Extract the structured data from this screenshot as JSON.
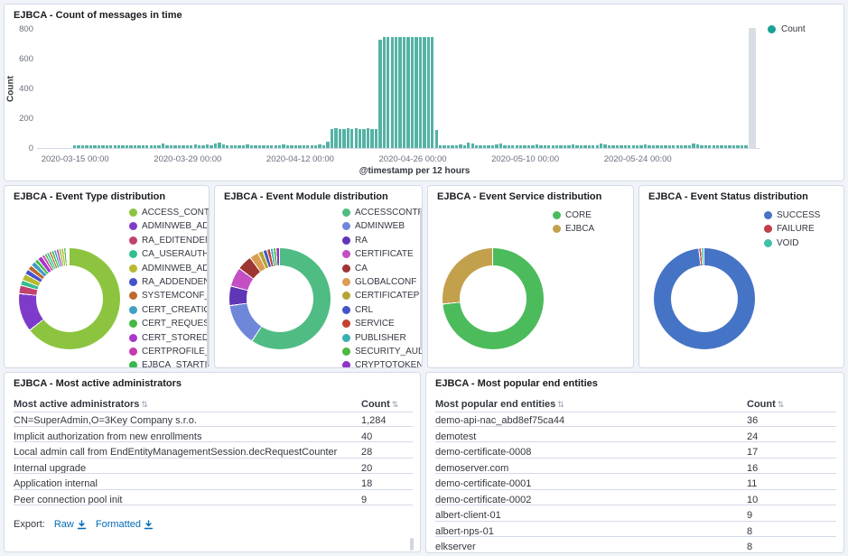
{
  "colors": {
    "bar": "#54b2a5",
    "legend_dot_count": "#1ba195",
    "panel_border": "#d3dae6",
    "link": "#006bb4",
    "text_primary": "#343741",
    "text_secondary": "#69707d",
    "endzone": "#d9dee5"
  },
  "chart_data": [
    {
      "id": "messages",
      "type": "bar",
      "title": "EJBCA - Count of messages in time",
      "xlabel": "@timestamp per 12 hours",
      "ylabel": "Count",
      "legend": [
        {
          "label": "Count",
          "color": "#1ba195"
        }
      ],
      "legend_position": "right",
      "ylim": [
        0,
        800
      ],
      "yticks": [
        0,
        200,
        400,
        600,
        800
      ],
      "xticks": [
        {
          "i": 0,
          "label": "2020-03-15 00:00"
        },
        {
          "i": 28,
          "label": "2020-03-29 00:00"
        },
        {
          "i": 56,
          "label": "2020-04-12 00:00"
        },
        {
          "i": 84,
          "label": "2020-04-26 00:00"
        },
        {
          "i": 112,
          "label": "2020-05-10 00:00"
        },
        {
          "i": 140,
          "label": "2020-05-24 00:00"
        }
      ],
      "values": [
        20,
        19,
        20,
        20,
        18,
        20,
        21,
        20,
        19,
        20,
        20,
        18,
        21,
        20,
        20,
        19,
        20,
        20,
        18,
        20,
        21,
        20,
        30,
        20,
        19,
        20,
        20,
        21,
        19,
        20,
        24,
        20,
        19,
        22,
        20,
        28,
        38,
        22,
        20,
        19,
        20,
        21,
        20,
        25,
        20,
        19,
        20,
        20,
        21,
        20,
        19,
        20,
        26,
        20,
        20,
        19,
        21,
        20,
        20,
        19,
        20,
        22,
        20,
        40,
        128,
        131,
        130,
        129,
        132,
        130,
        131,
        129,
        130,
        131,
        128,
        130,
        727,
        745,
        748,
        744,
        746,
        743,
        747,
        745,
        744,
        746,
        748,
        745,
        743,
        746,
        124,
        20,
        19,
        21,
        20,
        18,
        22,
        20,
        35,
        30,
        20,
        19,
        21,
        20,
        20,
        26,
        30,
        19,
        20,
        21,
        20,
        18,
        20,
        20,
        19,
        22,
        20,
        21,
        19,
        20,
        20,
        21,
        18,
        20,
        22,
        19,
        20,
        20,
        21,
        19,
        20,
        28,
        25,
        20,
        19,
        21,
        20,
        20,
        18,
        21,
        20,
        19,
        22,
        20,
        20,
        19,
        21,
        20,
        18,
        20,
        21,
        20,
        19,
        20,
        28,
        22,
        20,
        19,
        21,
        20,
        18,
        20,
        20,
        19,
        21,
        20,
        20,
        19
      ]
    },
    {
      "id": "event_type",
      "type": "pie",
      "title": "EJBCA - Event Type distribution",
      "has_legend_scrollbar": true,
      "legend": [
        {
          "label": "ACCESS_CONTR...",
          "color": "#8cc43f"
        },
        {
          "label": "ADMINWEB_AD...",
          "color": "#7e3bc9"
        },
        {
          "label": "RA_EDITENDENT...",
          "color": "#c2426e"
        },
        {
          "label": "CA_USERAUTH",
          "color": "#35bd8d"
        },
        {
          "label": "ADMINWEB_AD...",
          "color": "#b7b92f"
        },
        {
          "label": "RA_ADDENDENTI...",
          "color": "#4453c9"
        },
        {
          "label": "SYSTEMCONF_E...",
          "color": "#c0682e"
        },
        {
          "label": "CERT_CREATION",
          "color": "#3f9fc4"
        },
        {
          "label": "CERT_REQUEST",
          "color": "#44b944"
        },
        {
          "label": "CERT_STORED",
          "color": "#a838c9"
        },
        {
          "label": "CERTPROFILE_E...",
          "color": "#c838ae"
        },
        {
          "label": "EJBCA_STARTING",
          "color": "#35b94c"
        }
      ],
      "slices": [
        {
          "label": "ACCESS_CONTR...",
          "color": "#8cc43f",
          "pct": 64.5
        },
        {
          "label": "ADMINWEB_AD...",
          "color": "#7e3bc9",
          "pct": 12.3
        },
        {
          "label": "RA_EDITENDENT...",
          "color": "#c2426e",
          "pct": 2.7
        },
        {
          "label": "CA_USERAUTH",
          "color": "#35bd8d",
          "pct": 1.7
        },
        {
          "label": "ADMINWEB_AD...",
          "color": "#b7b92f",
          "pct": 2.1
        },
        {
          "label": "RA_ADDENDENTI...",
          "color": "#4453c9",
          "pct": 1.7
        },
        {
          "label": "SYSTEMCONF_E...",
          "color": "#c0682e",
          "pct": 1.6
        },
        {
          "label": "CERT_CREATION",
          "color": "#3f9fc4",
          "pct": 1.6
        },
        {
          "label": "CERT_REQUEST",
          "color": "#44b944",
          "pct": 1.2
        },
        {
          "label": "CERT_STORED",
          "color": "#a838c9",
          "pct": 1.6
        },
        {
          "label": "CERTPROFILE_E...",
          "color": "#c838ae",
          "pct": 0.9
        },
        {
          "label": "EJBCA_STARTING",
          "color": "#35b94c",
          "pct": 0.8
        },
        {
          "label": "",
          "color": "#2fbe9a",
          "pct": 0.8
        },
        {
          "label": "",
          "color": "#c0682e",
          "pct": 0.8
        },
        {
          "label": "",
          "color": "#35b94c",
          "pct": 0.8
        },
        {
          "label": "",
          "color": "#3f9fc4",
          "pct": 0.8
        },
        {
          "label": "",
          "color": "#c838ae",
          "pct": 0.8
        },
        {
          "label": "",
          "color": "#8cc43f",
          "pct": 0.8
        },
        {
          "label": "",
          "color": "#b7b92f",
          "pct": 0.8
        },
        {
          "label": "",
          "color": "#44b944",
          "pct": 0.7
        }
      ]
    },
    {
      "id": "event_module",
      "type": "pie",
      "title": "EJBCA - Event Module distribution",
      "has_legend_scrollbar": true,
      "legend": [
        {
          "label": "ACCESSCONTROL",
          "color": "#4fbc83"
        },
        {
          "label": "ADMINWEB",
          "color": "#6f87d8"
        },
        {
          "label": "RA",
          "color": "#5f36b5"
        },
        {
          "label": "CERTIFICATE",
          "color": "#c44fc4"
        },
        {
          "label": "CA",
          "color": "#9e3533"
        },
        {
          "label": "GLOBALCONF",
          "color": "#db9c53"
        },
        {
          "label": "CERTIFICATEPR...",
          "color": "#b5a435"
        },
        {
          "label": "CRL",
          "color": "#4355c5"
        },
        {
          "label": "SERVICE",
          "color": "#c2422f"
        },
        {
          "label": "PUBLISHER",
          "color": "#38afb2"
        },
        {
          "label": "SECURITY_AUDIT",
          "color": "#4cb83f"
        },
        {
          "label": "CRYPTOTOKEN",
          "color": "#8e35c9"
        }
      ],
      "slices": [
        {
          "label": "ACCESSCONTROL",
          "color": "#4fbc83",
          "pct": 59.5
        },
        {
          "label": "ADMINWEB",
          "color": "#6f87d8",
          "pct": 13.5
        },
        {
          "label": "RA",
          "color": "#5f36b5",
          "pct": 6.2
        },
        {
          "label": "CERTIFICATE",
          "color": "#c44fc4",
          "pct": 6.2
        },
        {
          "label": "CA",
          "color": "#9e3533",
          "pct": 4.8
        },
        {
          "label": "GLOBALCONF",
          "color": "#db9c53",
          "pct": 2.9
        },
        {
          "label": "CERTIFICATEPR...",
          "color": "#b5a435",
          "pct": 1.6
        },
        {
          "label": "CRL",
          "color": "#4355c5",
          "pct": 1.3
        },
        {
          "label": "SERVICE",
          "color": "#c2422f",
          "pct": 1.1
        },
        {
          "label": "PUBLISHER",
          "color": "#38afb2",
          "pct": 0.9
        },
        {
          "label": "SECURITY_AUDIT",
          "color": "#4cb83f",
          "pct": 0.9
        },
        {
          "label": "CRYPTOTOKEN",
          "color": "#8e35c9",
          "pct": 1.1
        }
      ]
    },
    {
      "id": "event_service",
      "type": "pie",
      "title": "EJBCA - Event Service distribution",
      "has_legend_scrollbar": false,
      "legend": [
        {
          "label": "CORE",
          "color": "#4cbb5c"
        },
        {
          "label": "EJBCA",
          "color": "#c3a04c"
        }
      ],
      "slices": [
        {
          "label": "CORE",
          "color": "#4cbb5c",
          "pct": 73.5
        },
        {
          "label": "EJBCA",
          "color": "#c3a04c",
          "pct": 26.5
        }
      ]
    },
    {
      "id": "event_status",
      "type": "pie",
      "title": "EJBCA - Event Status distribution",
      "has_legend_scrollbar": false,
      "legend": [
        {
          "label": "SUCCESS",
          "color": "#4574c6"
        },
        {
          "label": "FAILURE",
          "color": "#c43d4b"
        },
        {
          "label": "VOID",
          "color": "#3fc1a9"
        }
      ],
      "slices": [
        {
          "label": "SUCCESS",
          "color": "#4574c6",
          "pct": 98.4
        },
        {
          "label": "FAILURE",
          "color": "#c43d4b",
          "pct": 0.8
        },
        {
          "label": "VOID",
          "color": "#3fc1a9",
          "pct": 0.8
        }
      ]
    },
    {
      "id": "admins",
      "type": "table",
      "title": "EJBCA - Most active administrators",
      "columns": [
        "Most active administrators",
        "Count"
      ],
      "rows": [
        [
          "CN=SuperAdmin,O=3Key Company s.r.o.",
          "1,284"
        ],
        [
          "Implicit authorization from new enrollments",
          "40"
        ],
        [
          "Local admin call from EndEntityManagementSession.decRequestCounter",
          "28"
        ],
        [
          "Internal upgrade",
          "20"
        ],
        [
          "Application internal",
          "18"
        ],
        [
          "Peer connection pool init",
          "9"
        ]
      ],
      "export": {
        "label": "Export:",
        "raw": "Raw",
        "formatted": "Formatted"
      }
    },
    {
      "id": "entities",
      "type": "table",
      "title": "EJBCA - Most popular end entities",
      "columns": [
        "Most popular end entities",
        "Count"
      ],
      "rows": [
        [
          "demo-api-nac_abd8ef75ca44",
          "36"
        ],
        [
          "demotest",
          "24"
        ],
        [
          "demo-certificate-0008",
          "17"
        ],
        [
          "demoserver.com",
          "16"
        ],
        [
          "demo-certificate-0001",
          "11"
        ],
        [
          "demo-certificate-0002",
          "10"
        ],
        [
          "albert-client-01",
          "9"
        ],
        [
          "albert-nps-01",
          "8"
        ],
        [
          "elkserver",
          "8"
        ]
      ]
    }
  ]
}
